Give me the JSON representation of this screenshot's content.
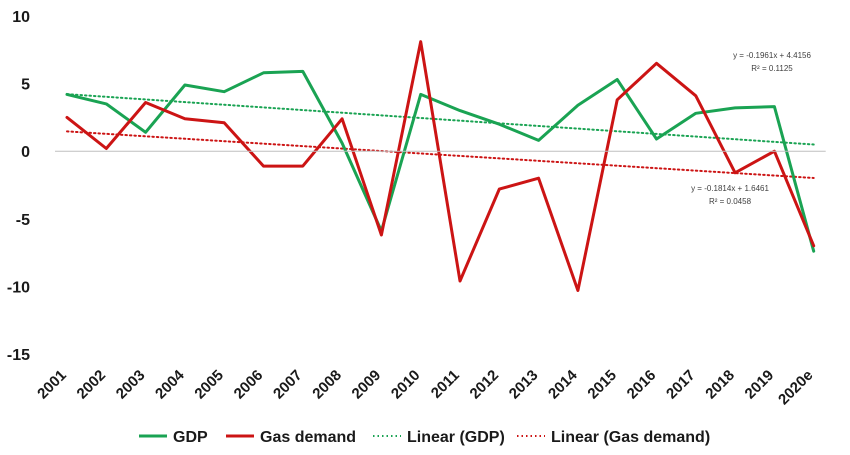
{
  "chart_data": {
    "type": "line",
    "title": "",
    "xlabel": "",
    "ylabel": "",
    "categories": [
      "2001",
      "2002",
      "2003",
      "2004",
      "2005",
      "2006",
      "2007",
      "2008",
      "2009",
      "2010",
      "2011",
      "2012",
      "2013",
      "2014",
      "2015",
      "2016",
      "2017",
      "2018",
      "2019",
      "2020e"
    ],
    "ylim": [
      -15,
      10
    ],
    "yticks": [
      10,
      5,
      0,
      -5,
      -10,
      -15
    ],
    "grid": false,
    "legend_position": "bottom",
    "series": [
      {
        "name": "GDP",
        "color": "#1aa353",
        "style": "solid",
        "values": [
          4.2,
          3.5,
          1.4,
          4.9,
          4.4,
          5.8,
          5.9,
          0.6,
          -5.9,
          4.2,
          3.0,
          2.0,
          0.8,
          3.4,
          5.3,
          0.9,
          2.8,
          3.2,
          3.3,
          -7.4
        ]
      },
      {
        "name": "Gas demand",
        "color": "#cc1414",
        "style": "solid",
        "values": [
          2.5,
          0.2,
          3.6,
          2.4,
          2.1,
          -1.1,
          -1.1,
          2.4,
          -6.2,
          8.1,
          -9.6,
          -2.8,
          -2.0,
          -10.3,
          3.8,
          6.5,
          4.1,
          -1.6,
          0.0,
          -7.0
        ]
      },
      {
        "name": "Linear (GDP)",
        "color": "#1aa353",
        "style": "dotted",
        "slope": -0.1961,
        "intercept": 4.4156,
        "equation": "y = -0.1961x + 4.4156",
        "r2": "R² = 0.1125"
      },
      {
        "name": "Linear (Gas demand)",
        "color": "#cc1414",
        "style": "dotted",
        "slope": -0.1814,
        "intercept": 1.6461,
        "equation": "y = -0.1814x + 1.6461",
        "r2": "R² = 0.0458"
      }
    ]
  }
}
